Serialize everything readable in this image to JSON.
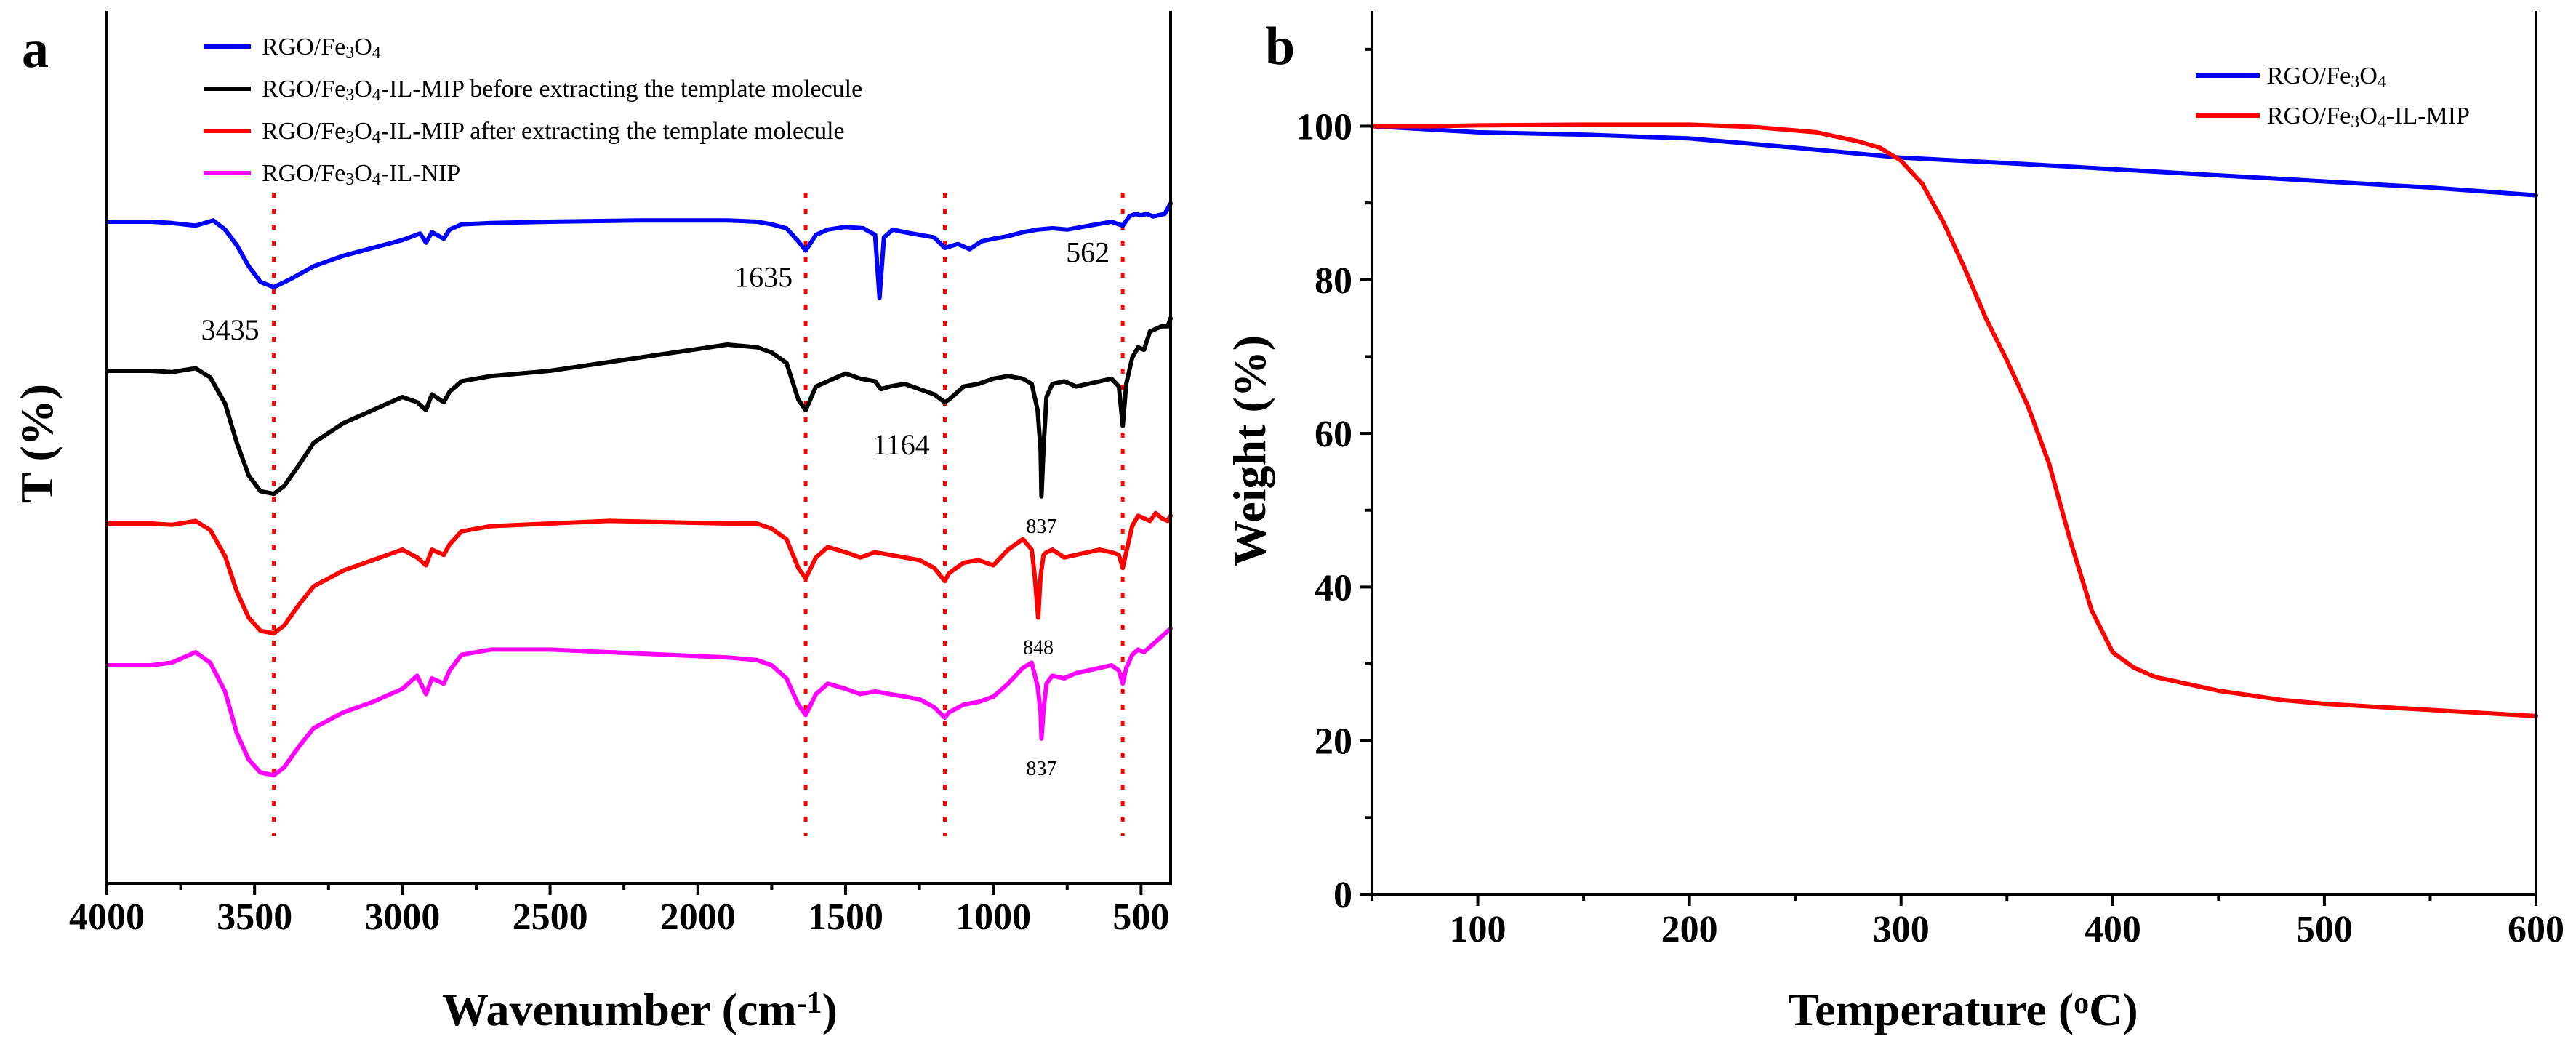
{
  "chart_data": [
    {
      "panel": "a",
      "type": "line",
      "title": "",
      "xlabel": "Wavenumber (cm",
      "xlabel_sup": "-1",
      "xlabel_close": ")",
      "ylabel": "T (%)",
      "xlim": [
        4000,
        400
      ],
      "xticks": [
        4000,
        3500,
        3000,
        2500,
        2000,
        1500,
        1000,
        500
      ],
      "yticks_shown": false,
      "units": "transmittance, offset (arbitrary units)",
      "legend": "top-left",
      "series": [
        {
          "name": "RGO/Fe3O4",
          "label_parts": [
            [
              "RGO/Fe",
              "n"
            ],
            [
              "3",
              "s"
            ],
            [
              "O",
              "n"
            ],
            [
              "4",
              "s"
            ]
          ],
          "color": "#0000ff",
          "offset": 0,
          "x": [
            4000,
            3850,
            3780,
            3700,
            3640,
            3600,
            3560,
            3520,
            3480,
            3435,
            3380,
            3300,
            3200,
            3100,
            3000,
            2940,
            2920,
            2900,
            2860,
            2840,
            2800,
            2700,
            2500,
            2200,
            1900,
            1800,
            1750,
            1700,
            1660,
            1635,
            1600,
            1560,
            1500,
            1440,
            1400,
            1385,
            1370,
            1340,
            1300,
            1250,
            1200,
            1164,
            1120,
            1080,
            1040,
            1000,
            950,
            900,
            850,
            800,
            750,
            700,
            650,
            600,
            562,
            540,
            520,
            500,
            480,
            460,
            440,
            420,
            400
          ],
          "y": [
            0,
            0,
            1,
            3,
            -1,
            6,
            18,
            34,
            46,
            50,
            44,
            34,
            26,
            20,
            14,
            9,
            16,
            8,
            13,
            6,
            2,
            1,
            0,
            -1,
            -1,
            0,
            2,
            5,
            15,
            22,
            10,
            6,
            4,
            5,
            10,
            58,
            12,
            6,
            8,
            10,
            12,
            20,
            17,
            21,
            15,
            13,
            11,
            8,
            6,
            5,
            6,
            4,
            2,
            0,
            3,
            -4,
            -6,
            -5,
            -6,
            -4,
            -5,
            -6,
            -14
          ]
        },
        {
          "name": "RGO/Fe3O4-IL-MIP before extracting the template molecule",
          "label_parts": [
            [
              "RGO/Fe",
              "n"
            ],
            [
              "3",
              "s"
            ],
            [
              "O",
              "n"
            ],
            [
              "4",
              "s"
            ],
            [
              "-IL-MIP before extracting the template molecule",
              "n"
            ]
          ],
          "color": "#000000",
          "offset": 205,
          "x": [
            4000,
            3850,
            3780,
            3700,
            3650,
            3600,
            3560,
            3520,
            3480,
            3435,
            3400,
            3350,
            3300,
            3200,
            3100,
            3000,
            2950,
            2920,
            2900,
            2860,
            2840,
            2800,
            2700,
            2500,
            2200,
            1900,
            1800,
            1750,
            1700,
            1660,
            1635,
            1600,
            1560,
            1500,
            1450,
            1400,
            1380,
            1350,
            1300,
            1250,
            1200,
            1164,
            1150,
            1100,
            1050,
            1000,
            950,
            900,
            870,
            850,
            840,
            837,
            830,
            820,
            800,
            760,
            720,
            680,
            640,
            600,
            575,
            562,
            550,
            530,
            510,
            490,
            470,
            450,
            430,
            410,
            400
          ],
          "y": [
            0,
            0,
            1,
            -2,
            5,
            25,
            55,
            80,
            92,
            94,
            88,
            72,
            55,
            40,
            30,
            20,
            24,
            30,
            18,
            24,
            16,
            8,
            4,
            0,
            -10,
            -20,
            -18,
            -14,
            -6,
            22,
            30,
            12,
            8,
            2,
            6,
            8,
            14,
            12,
            10,
            14,
            18,
            24,
            22,
            12,
            10,
            6,
            4,
            6,
            10,
            30,
            60,
            96,
            58,
            20,
            10,
            8,
            12,
            10,
            8,
            6,
            12,
            42,
            10,
            -10,
            -18,
            -16,
            -30,
            -32,
            -34,
            -34,
            -40
          ]
        },
        {
          "name": "RGO/Fe3O4-IL-MIP after extracting the template molecule",
          "label_parts": [
            [
              "RGO/Fe",
              "n"
            ],
            [
              "3",
              "s"
            ],
            [
              "O",
              "n"
            ],
            [
              "4",
              "s"
            ],
            [
              "-IL-MIP after extracting the template molecule",
              "n"
            ]
          ],
          "color": "#ff0000",
          "offset": 415,
          "x": [
            4000,
            3850,
            3780,
            3700,
            3650,
            3600,
            3560,
            3520,
            3480,
            3435,
            3400,
            3350,
            3300,
            3200,
            3100,
            3000,
            2950,
            2920,
            2900,
            2860,
            2840,
            2800,
            2700,
            2500,
            2300,
            2100,
            1900,
            1800,
            1750,
            1700,
            1660,
            1635,
            1600,
            1560,
            1500,
            1450,
            1400,
            1350,
            1300,
            1250,
            1200,
            1164,
            1150,
            1100,
            1050,
            1000,
            950,
            900,
            870,
            860,
            848,
            840,
            830,
            820,
            800,
            760,
            720,
            680,
            640,
            600,
            575,
            562,
            550,
            530,
            510,
            490,
            470,
            450,
            430,
            410,
            400
          ],
          "y": [
            0,
            0,
            1,
            -2,
            5,
            25,
            52,
            72,
            82,
            84,
            78,
            62,
            48,
            36,
            28,
            20,
            26,
            32,
            20,
            24,
            16,
            6,
            2,
            0,
            -2,
            -1,
            0,
            0,
            4,
            12,
            34,
            42,
            26,
            18,
            22,
            26,
            22,
            24,
            26,
            28,
            34,
            44,
            38,
            30,
            28,
            32,
            20,
            12,
            20,
            40,
            72,
            40,
            24,
            22,
            20,
            26,
            24,
            22,
            20,
            22,
            24,
            34,
            22,
            2,
            -6,
            -4,
            -2,
            -8,
            -4,
            -2,
            -6
          ]
        },
        {
          "name": "RGO/Fe3O4-IL-NIP",
          "label_parts": [
            [
              "RGO/Fe",
              "n"
            ],
            [
              "3",
              "s"
            ],
            [
              "O",
              "n"
            ],
            [
              "4",
              "s"
            ],
            [
              "-IL-NIP",
              "n"
            ]
          ],
          "color": "#ff00ff",
          "offset": 610,
          "x": [
            4000,
            3850,
            3780,
            3700,
            3650,
            3600,
            3560,
            3520,
            3480,
            3435,
            3400,
            3350,
            3300,
            3200,
            3100,
            3000,
            2950,
            2920,
            2900,
            2860,
            2840,
            2800,
            2700,
            2500,
            2300,
            2100,
            1900,
            1800,
            1750,
            1700,
            1660,
            1635,
            1600,
            1560,
            1500,
            1450,
            1400,
            1350,
            1300,
            1250,
            1200,
            1164,
            1150,
            1100,
            1050,
            1000,
            950,
            900,
            870,
            850,
            840,
            837,
            830,
            820,
            800,
            760,
            720,
            680,
            640,
            600,
            575,
            562,
            550,
            530,
            510,
            490,
            470,
            450,
            430,
            410,
            400
          ],
          "y": [
            0,
            0,
            -2,
            -10,
            -2,
            20,
            52,
            72,
            82,
            84,
            78,
            62,
            48,
            36,
            28,
            18,
            8,
            22,
            10,
            14,
            4,
            -8,
            -12,
            -12,
            -10,
            -8,
            -6,
            -4,
            0,
            10,
            30,
            38,
            22,
            14,
            18,
            22,
            20,
            22,
            24,
            26,
            32,
            40,
            36,
            30,
            28,
            24,
            14,
            2,
            -2,
            16,
            36,
            56,
            34,
            14,
            8,
            10,
            6,
            4,
            2,
            0,
            4,
            14,
            2,
            -8,
            -12,
            -10,
            -14,
            -18,
            -22,
            -26,
            -28
          ]
        }
      ],
      "guide_lines_x": [
        3435,
        1635,
        1164,
        562
      ],
      "annotations": [
        {
          "text": "3435",
          "x": 3435,
          "series": 0,
          "position": "below-left",
          "size": "large"
        },
        {
          "text": "1635",
          "x": 1635,
          "series": 0,
          "position": "left",
          "size": "large"
        },
        {
          "text": "562",
          "x": 562,
          "series": 0,
          "position": "left",
          "size": "large"
        },
        {
          "text": "1164",
          "x": 1164,
          "series": 1,
          "position": "below-left",
          "size": "large"
        },
        {
          "text": "837",
          "x": 837,
          "series": 1,
          "position": "below",
          "size": "small"
        },
        {
          "text": "848",
          "x": 848,
          "series": 2,
          "position": "below",
          "size": "small"
        },
        {
          "text": "837",
          "x": 837,
          "series": 3,
          "position": "below",
          "size": "small"
        }
      ]
    },
    {
      "panel": "b",
      "type": "line",
      "title": "",
      "xlabel": "Temperature (",
      "xlabel_sup": "o",
      "xlabel_close": "C)",
      "ylabel": "Weight (%)",
      "xlim": [
        50,
        600
      ],
      "ylim": [
        0,
        115
      ],
      "xticks": [
        100,
        200,
        300,
        400,
        500,
        600
      ],
      "yticks": [
        0,
        20,
        40,
        60,
        80,
        100
      ],
      "legend": "top-right",
      "series": [
        {
          "name": "RGO/Fe3O4",
          "label_parts": [
            [
              "RGO/Fe",
              "n"
            ],
            [
              "3",
              "s"
            ],
            [
              "O",
              "n"
            ],
            [
              "4",
              "s"
            ]
          ],
          "color": "#0000ff",
          "x": [
            50,
            100,
            150,
            200,
            250,
            300,
            350,
            400,
            450,
            500,
            550,
            600
          ],
          "y": [
            100,
            99.2,
            98.9,
            98.4,
            97.2,
            95.9,
            95.2,
            94.4,
            93.6,
            92.8,
            92.0,
            91.0
          ]
        },
        {
          "name": "RGO/Fe3O4-IL-MIP",
          "label_parts": [
            [
              "RGO/Fe",
              "n"
            ],
            [
              "3",
              "s"
            ],
            [
              "O",
              "n"
            ],
            [
              "4",
              "s"
            ],
            [
              "-IL-MIP",
              "n"
            ]
          ],
          "color": "#ff0000",
          "x": [
            50,
            80,
            100,
            150,
            200,
            230,
            260,
            280,
            290,
            300,
            310,
            320,
            330,
            340,
            350,
            360,
            370,
            380,
            390,
            400,
            410,
            420,
            430,
            450,
            480,
            500,
            550,
            600
          ],
          "y": [
            100,
            100,
            100.1,
            100.2,
            100.2,
            99.9,
            99.2,
            98.0,
            97.2,
            95.5,
            92.5,
            87.5,
            81.5,
            75.0,
            69.5,
            63.5,
            56.0,
            46.0,
            37.0,
            31.5,
            29.5,
            28.3,
            27.7,
            26.5,
            25.3,
            24.8,
            24.0,
            23.2
          ]
        }
      ]
    }
  ]
}
